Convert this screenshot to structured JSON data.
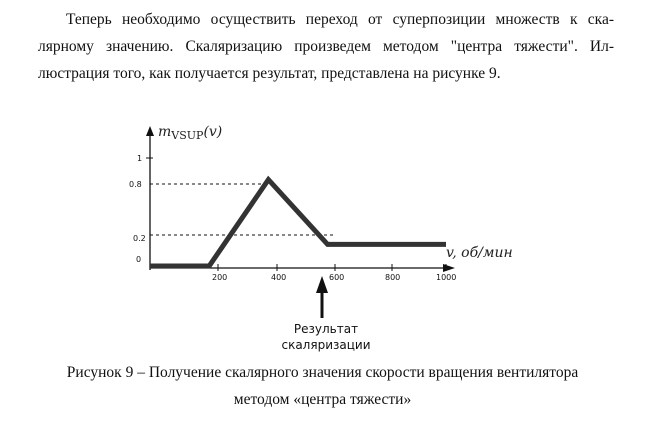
{
  "paragraph": {
    "line1": "Теперь необходимо осуществить переход от суперпозиции множеств к ска-",
    "line2": "лярному значению. Скаляризацию произведем методом \"центра тяжести\". Ил-",
    "line3": "люстрация того, как получается результат, представлена на рисунке 9."
  },
  "chart_data": {
    "type": "line",
    "ylabel_main": "m",
    "ylabel_sub": "VSUP",
    "ylabel_arg": "(v)",
    "xlabel": "v, об/мин",
    "y_ticks": [
      "1",
      "0.8",
      "0.2",
      "0"
    ],
    "x_ticks": [
      "200",
      "400",
      "600",
      "800",
      "1000"
    ],
    "series": [
      {
        "x": [
          0,
          200,
          400,
          600,
          1000
        ],
        "y": [
          0,
          0,
          0.8,
          0.2,
          0.2
        ]
      }
    ],
    "reference_lines_y": [
      0.8,
      0.2
    ],
    "ylim": [
      0,
      1.1
    ],
    "xlim": [
      0,
      1000
    ],
    "annotation": {
      "x": 600,
      "line1": "Результат",
      "line2": "скаляризации"
    }
  },
  "caption": {
    "line1": "Рисунок 9 – Получение скалярного значения скорости вращения вентилятора",
    "line2": "методом «центра тяжести»"
  }
}
